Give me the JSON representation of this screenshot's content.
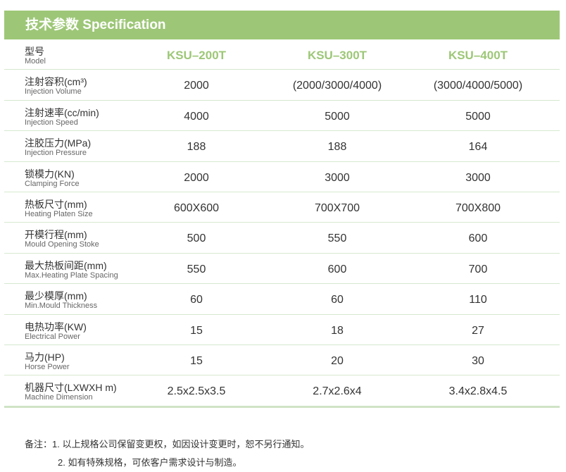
{
  "header": {
    "title": "技术参数 Specification"
  },
  "models": [
    "KSU–200T",
    "KSU–300T",
    "KSU–400T"
  ],
  "model_label": {
    "cn": "型号",
    "en": "Model"
  },
  "accent_color": "#9dc777",
  "rows": [
    {
      "cn": "注射容积(cm³)",
      "en": "Injection Volume",
      "values": [
        "2000",
        "(2000/3000/4000)",
        "(3000/4000/5000)"
      ]
    },
    {
      "cn": "注射速率(cc/min)",
      "en": "Injection Speed",
      "values": [
        "4000",
        "5000",
        "5000"
      ]
    },
    {
      "cn": "注胶压力(MPa)",
      "en": "Injection Pressure",
      "values": [
        "188",
        "188",
        "164"
      ]
    },
    {
      "cn": "锁模力(KN)",
      "en": "Clamping Force",
      "values": [
        "2000",
        "3000",
        "3000"
      ]
    },
    {
      "cn": "热板尺寸(mm)",
      "en": "Heating Platen Size",
      "values": [
        "600X600",
        "700X700",
        "700X800"
      ]
    },
    {
      "cn": "开模行程(mm)",
      "en": "Mould Opening Stoke",
      "values": [
        "500",
        "550",
        "600"
      ]
    },
    {
      "cn": "最大热板间距(mm)",
      "en": "Max.Heating Plate Spacing",
      "values": [
        "550",
        "600",
        "700"
      ]
    },
    {
      "cn": "最少模厚(mm)",
      "en": "Min.Mould Thickness",
      "values": [
        "60",
        "60",
        "110"
      ]
    },
    {
      "cn": "电热功率(KW)",
      "en": "Electrical Power",
      "values": [
        "15",
        "18",
        "27"
      ]
    },
    {
      "cn": "马力(HP)",
      "en": "Horse Power",
      "values": [
        "15",
        "20",
        "30"
      ]
    },
    {
      "cn": "机器尺寸(LXWXH m)",
      "en": "Machine Dimension",
      "values": [
        "2.5x2.5x3.5",
        "2.7x2.6x4",
        "3.4x2.8x4.5"
      ]
    }
  ],
  "notes": {
    "line1": "备注：1. 以上规格公司保留变更权，如因设计变更时，恕不另行通知。",
    "line2": "2. 如有特殊规格，可依客户需求设计与制造。"
  }
}
